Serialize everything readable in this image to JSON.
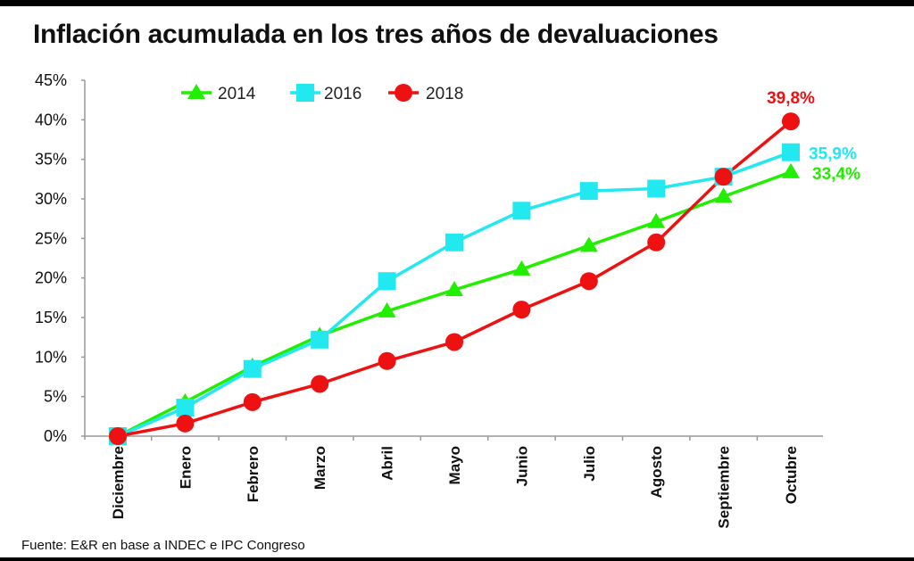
{
  "title": "Inflación acumulada en los tres años de devaluaciones",
  "source": "Fuente: E&R en base a INDEC e IPC Congreso",
  "chart_data": {
    "type": "line",
    "title": "Inflación acumulada en los tres años de devaluaciones",
    "xlabel": "",
    "ylabel": "",
    "categories": [
      "Diciembre",
      "Enero",
      "Febrero",
      "Marzo",
      "Abril",
      "Mayo",
      "Junio",
      "Julio",
      "Agosto",
      "Septiembre",
      "Octubre"
    ],
    "ylim": [
      0,
      45
    ],
    "yticks": [
      "0%",
      "5%",
      "10%",
      "15%",
      "20%",
      "25%",
      "30%",
      "35%",
      "40%",
      "45%"
    ],
    "grid": false,
    "legend_position": "top",
    "series": [
      {
        "name": "2014",
        "marker": "triangle",
        "color": "#22ee00",
        "values": [
          0,
          4.3,
          8.8,
          12.7,
          15.8,
          18.5,
          21.1,
          24.1,
          27.1,
          30.3,
          33.4
        ],
        "end_label": "33,4%"
      },
      {
        "name": "2016",
        "marker": "square",
        "color": "#22e8f0",
        "values": [
          0,
          3.6,
          8.5,
          12.2,
          19.6,
          24.5,
          28.5,
          31.0,
          31.3,
          32.8,
          35.9
        ],
        "end_label": "35,9%"
      },
      {
        "name": "2018",
        "marker": "circle",
        "color": "#ee1111",
        "values": [
          0,
          1.6,
          4.3,
          6.6,
          9.5,
          11.9,
          16.0,
          19.6,
          24.5,
          32.8,
          39.8
        ],
        "end_label": "39,8%"
      }
    ]
  }
}
